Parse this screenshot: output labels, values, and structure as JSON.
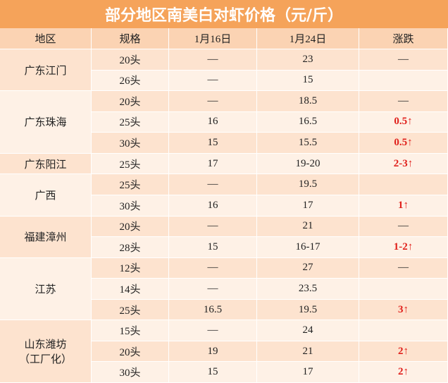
{
  "title": "部分地区南美白对虾价格（元/斤）",
  "table": {
    "header": [
      "地区",
      "规格",
      "1月16日",
      "1月24日",
      "涨跌"
    ],
    "groups": [
      {
        "region": [
          "广东江门"
        ],
        "rows": [
          [
            "20头",
            "—",
            "23",
            "—"
          ],
          [
            "26头",
            "—",
            "15",
            null
          ]
        ]
      },
      {
        "region": [
          "广东珠海"
        ],
        "rows": [
          [
            "20头",
            "—",
            "18.5",
            "—"
          ],
          [
            "25头",
            "16",
            "16.5",
            "0.5↑"
          ],
          [
            "30头",
            "15",
            "15.5",
            "0.5↑"
          ]
        ]
      },
      {
        "region": [
          "广东阳江"
        ],
        "rows": [
          [
            "25头",
            "17",
            "19-20",
            "2-3↑"
          ]
        ]
      },
      {
        "region": [
          "广西"
        ],
        "rows": [
          [
            "25头",
            "—",
            "19.5",
            null
          ],
          [
            "30头",
            "16",
            "17",
            "1↑"
          ]
        ]
      },
      {
        "region": [
          "福建漳州"
        ],
        "rows": [
          [
            "20头",
            "—",
            "21",
            "—"
          ],
          [
            "28头",
            "15",
            "16-17",
            "1-2↑"
          ]
        ]
      },
      {
        "region": [
          "江苏"
        ],
        "rows": [
          [
            "12头",
            "—",
            "27",
            "—"
          ],
          [
            "14头",
            "—",
            "23.5",
            null
          ],
          [
            "25头",
            "16.5",
            "19.5",
            "3↑"
          ]
        ]
      },
      {
        "region": [
          "山东潍坊",
          "（工厂化）"
        ],
        "rows": [
          [
            "15头",
            "—",
            "24",
            null
          ],
          [
            "20头",
            "19",
            "21",
            "2↑"
          ],
          [
            "30头",
            "15",
            "17",
            "2↑"
          ]
        ]
      }
    ]
  }
}
